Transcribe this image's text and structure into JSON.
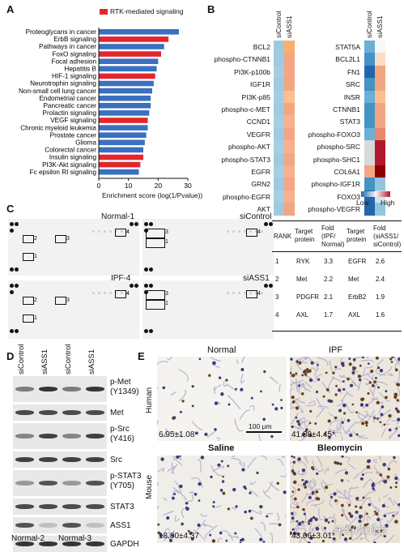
{
  "panelA": {
    "letter": "A",
    "legend": "RTK-mediated signaling",
    "xlabel": "Enrichment score (log(1/Pvalue))",
    "xticks": [
      "0",
      "10",
      "20",
      "30"
    ],
    "colors": {
      "blue": "#3b6fc0",
      "red": "#e2262c"
    }
  },
  "chart_data": {
    "type": "bar",
    "orientation": "horizontal",
    "categories": [
      "Proteoglycans in cancer",
      "ErbB signaling",
      "Pathways in cancer",
      "FoxO signaling",
      "Focal adhesion",
      "Hepatitis B",
      "HIF-1 signaling",
      "Neurotrophin signaling",
      "Non-small cell lung cancer",
      "Endometrial cancer",
      "Pancreatic cancer",
      "Prolactin signaling",
      "VEGF signaling",
      "Chronic myeloid leukemia",
      "Prostate cancer",
      "Glioma",
      "Colorectal cancer",
      "Insulin signaling",
      "PI3K-Akt signaling",
      "Fc epsilon RI signaling"
    ],
    "values": [
      27,
      23.5,
      22,
      21,
      20,
      19.5,
      19,
      18.5,
      18,
      17.5,
      17.5,
      17,
      16.5,
      16.5,
      16,
      15.5,
      15,
      15,
      14,
      13.5
    ],
    "rtk": [
      false,
      true,
      false,
      true,
      false,
      false,
      true,
      false,
      false,
      false,
      false,
      false,
      true,
      false,
      false,
      false,
      false,
      true,
      true,
      false
    ],
    "xlabel": "Enrichment score (log(1/Pvalue))",
    "xlim": [
      0,
      30
    ],
    "legend_placement": "top-right"
  },
  "panelB": {
    "letter": "B",
    "col_labels": [
      "siControl",
      "siASS1"
    ],
    "left_rows": [
      "BCL2",
      "phospho-CTNNB1",
      "PI3K-p100b",
      "IGF1R",
      "PI3K-p85",
      "phospho-c-MET",
      "CCND1",
      "VEGFR",
      "phospho-AKT",
      "phospho-STAT3",
      "EGFR",
      "GRN2",
      "phospho-EGFR",
      "AKT"
    ],
    "right_rows": [
      "STAT5A",
      "BCL2L1",
      "FN1",
      "SRC",
      "INSR",
      "CTNNB1",
      "STAT3",
      "phospho-FOXO3",
      "phospho-SRC",
      "phospho-SHC1",
      "COL6A1",
      "phospho-IGF1R",
      "FOXO3",
      "phospho-VEGFR"
    ],
    "left_colors": [
      [
        "#9ecae1",
        "#fdae6b"
      ],
      [
        "#9ecae1",
        "#f4a582"
      ],
      [
        "#a6cee3",
        "#f4a582"
      ],
      [
        "#9ecae1",
        "#f4a582"
      ],
      [
        "#a6cee3",
        "#fdbf8f"
      ],
      [
        "#9ecae1",
        "#f4a582"
      ],
      [
        "#a6cee3",
        "#f6b18f"
      ],
      [
        "#9ecae1",
        "#f4a582"
      ],
      [
        "#a6cee3",
        "#f6b18f"
      ],
      [
        "#9ecae1",
        "#f4a582"
      ],
      [
        "#a6cee3",
        "#f6b18f"
      ],
      [
        "#9ecae1",
        "#f4a582"
      ],
      [
        "#a6cee3",
        "#f6b18f"
      ],
      [
        "#9ecae1",
        "#f4a582"
      ]
    ],
    "right_colors": [
      [
        "#6baed6",
        "#f7f7f7"
      ],
      [
        "#4393c3",
        "#fddbc7"
      ],
      [
        "#2166ac",
        "#f4a582"
      ],
      [
        "#4393c3",
        "#f4a582"
      ],
      [
        "#6baed6",
        "#fdbf8f"
      ],
      [
        "#4393c3",
        "#f4a582"
      ],
      [
        "#4393c3",
        "#f6a582"
      ],
      [
        "#6baed6",
        "#e7886b"
      ],
      [
        "#d9d9d9",
        "#b2182b"
      ],
      [
        "#d9d9d9",
        "#b2182b"
      ],
      [
        "#f4a582",
        "#8b0000"
      ],
      [
        "#4393c3",
        "#92c5de"
      ],
      [
        "#2166ac",
        "#d1e5f0"
      ],
      [
        "#2166ac",
        "#92c5de"
      ]
    ],
    "scale_low": "Low",
    "scale_high": "High"
  },
  "panelC": {
    "letter": "C",
    "labels": [
      "Normal-1",
      "siControl",
      "IPF-4",
      "siASS1"
    ],
    "box_nums_a": [
      "2",
      "3",
      "1",
      "4"
    ],
    "box_nums_b": [
      "3",
      "4",
      "1",
      "2"
    ],
    "table": {
      "headers": [
        "RANK",
        "Target protein",
        "Fold (IPF/ Normal)",
        "Target protein",
        "Fold (siASS1/ siControl)"
      ],
      "rows": [
        [
          "1",
          "RYK",
          "3.3",
          "EGFR",
          "2.6"
        ],
        [
          "2",
          "Met",
          "2.2",
          "Met",
          "2.4"
        ],
        [
          "3",
          "PDGFR",
          "2.1",
          "ErbB2",
          "1.9"
        ],
        [
          "4",
          "AXL",
          "1.7",
          "AXL",
          "1.6"
        ]
      ]
    }
  },
  "panelD": {
    "letter": "D",
    "col_labels": [
      "siControl",
      "siASS1",
      "siControl",
      "siASS1"
    ],
    "rows": [
      "p-Met (Y1349)",
      "Met",
      "p-Src (Y416)",
      "Src",
      "p-STAT3 (Y705)",
      "STAT3",
      "ASS1",
      "GAPDH"
    ],
    "groups": [
      "Normal-2",
      "Normal-3"
    ]
  },
  "panelE": {
    "letter": "E",
    "col_human": [
      "Normal",
      "IPF"
    ],
    "col_mouse": [
      "Saline",
      "Bleomycin"
    ],
    "row_labels": [
      "Human",
      "Mouse"
    ],
    "scale": "100 μm",
    "values": [
      "6.95±1.08",
      "41.88±4.45*",
      "18.80±4.37",
      "43.06±3.01*"
    ]
  },
  "watermark": "纤维化课题组"
}
